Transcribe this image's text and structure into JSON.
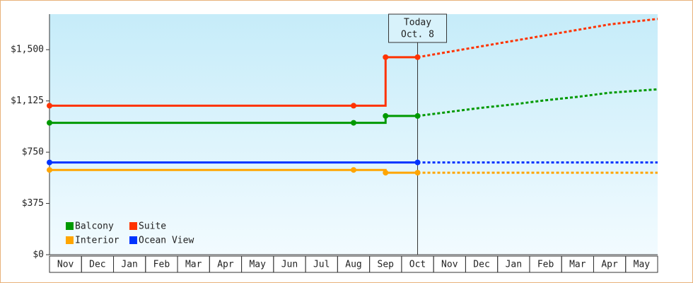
{
  "chart_data": {
    "type": "line",
    "categories": [
      "Nov",
      "Dec",
      "Jan",
      "Feb",
      "Mar",
      "Apr",
      "May",
      "Jun",
      "Jul",
      "Aug",
      "Sep",
      "Oct",
      "Nov",
      "Dec",
      "Jan",
      "Feb",
      "Mar",
      "Apr",
      "May"
    ],
    "series": [
      {
        "name": "Balcony",
        "color": "#009900",
        "values": [
          965,
          965,
          965,
          965,
          965,
          965,
          965,
          965,
          965,
          965,
          1015,
          1015,
          1045,
          1075,
          1100,
          1130,
          1155,
          1185,
          1210
        ]
      },
      {
        "name": "Suite",
        "color": "#ff3300",
        "values": [
          1090,
          1090,
          1090,
          1090,
          1090,
          1090,
          1090,
          1090,
          1090,
          1090,
          1445,
          1445,
          1485,
          1525,
          1565,
          1605,
          1645,
          1685,
          1725
        ]
      },
      {
        "name": "Interior",
        "color": "#ffa500",
        "values": [
          620,
          620,
          620,
          620,
          620,
          620,
          620,
          620,
          620,
          620,
          600,
          600,
          600,
          600,
          600,
          600,
          600,
          600,
          600
        ]
      },
      {
        "name": "Ocean View",
        "color": "#0033ff",
        "values": [
          675,
          675,
          675,
          675,
          675,
          675,
          675,
          675,
          675,
          675,
          675,
          675,
          675,
          675,
          675,
          675,
          675,
          675,
          675
        ]
      }
    ],
    "ylim": [
      0,
      1760
    ],
    "yticks": [
      {
        "value": 0,
        "label": "$0"
      },
      {
        "value": 375,
        "label": "$375"
      },
      {
        "value": 750,
        "label": "$750"
      },
      {
        "value": 1125,
        "label": "$1,125"
      },
      {
        "value": 1500,
        "label": "$1,500"
      }
    ],
    "today": {
      "label": "Today",
      "date": "Oct. 8"
    },
    "legend": "lower left"
  }
}
